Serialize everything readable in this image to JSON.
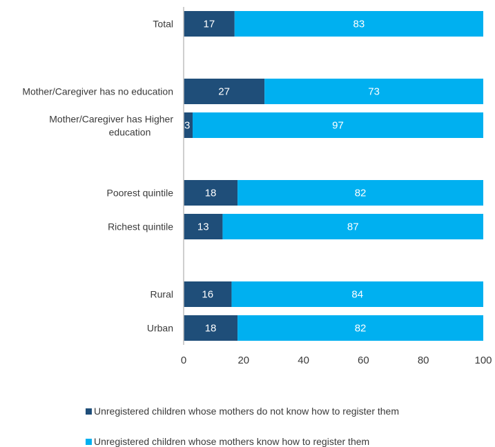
{
  "chart_data": {
    "type": "bar",
    "orientation": "horizontal",
    "stacked": true,
    "categories": [
      "Total",
      "Mother/Caregiver has no education",
      "Mother/Caregiver has Higher education",
      "Poorest quintile",
      "Richest quintile",
      "Rural",
      "Urban"
    ],
    "series": [
      {
        "name": "Unregistered children whose mothers do not know how to register them",
        "color": "#1f4e79",
        "values": [
          17,
          27,
          3,
          18,
          13,
          16,
          18
        ]
      },
      {
        "name": "Unregistered children whose mothers know how to register them",
        "color": "#00b0f0",
        "values": [
          83,
          73,
          97,
          82,
          87,
          84,
          82
        ]
      }
    ],
    "xlim": [
      0,
      100
    ],
    "xticks": [
      0,
      20,
      40,
      60,
      80,
      100
    ],
    "grid": false,
    "legend_position": "bottom"
  }
}
